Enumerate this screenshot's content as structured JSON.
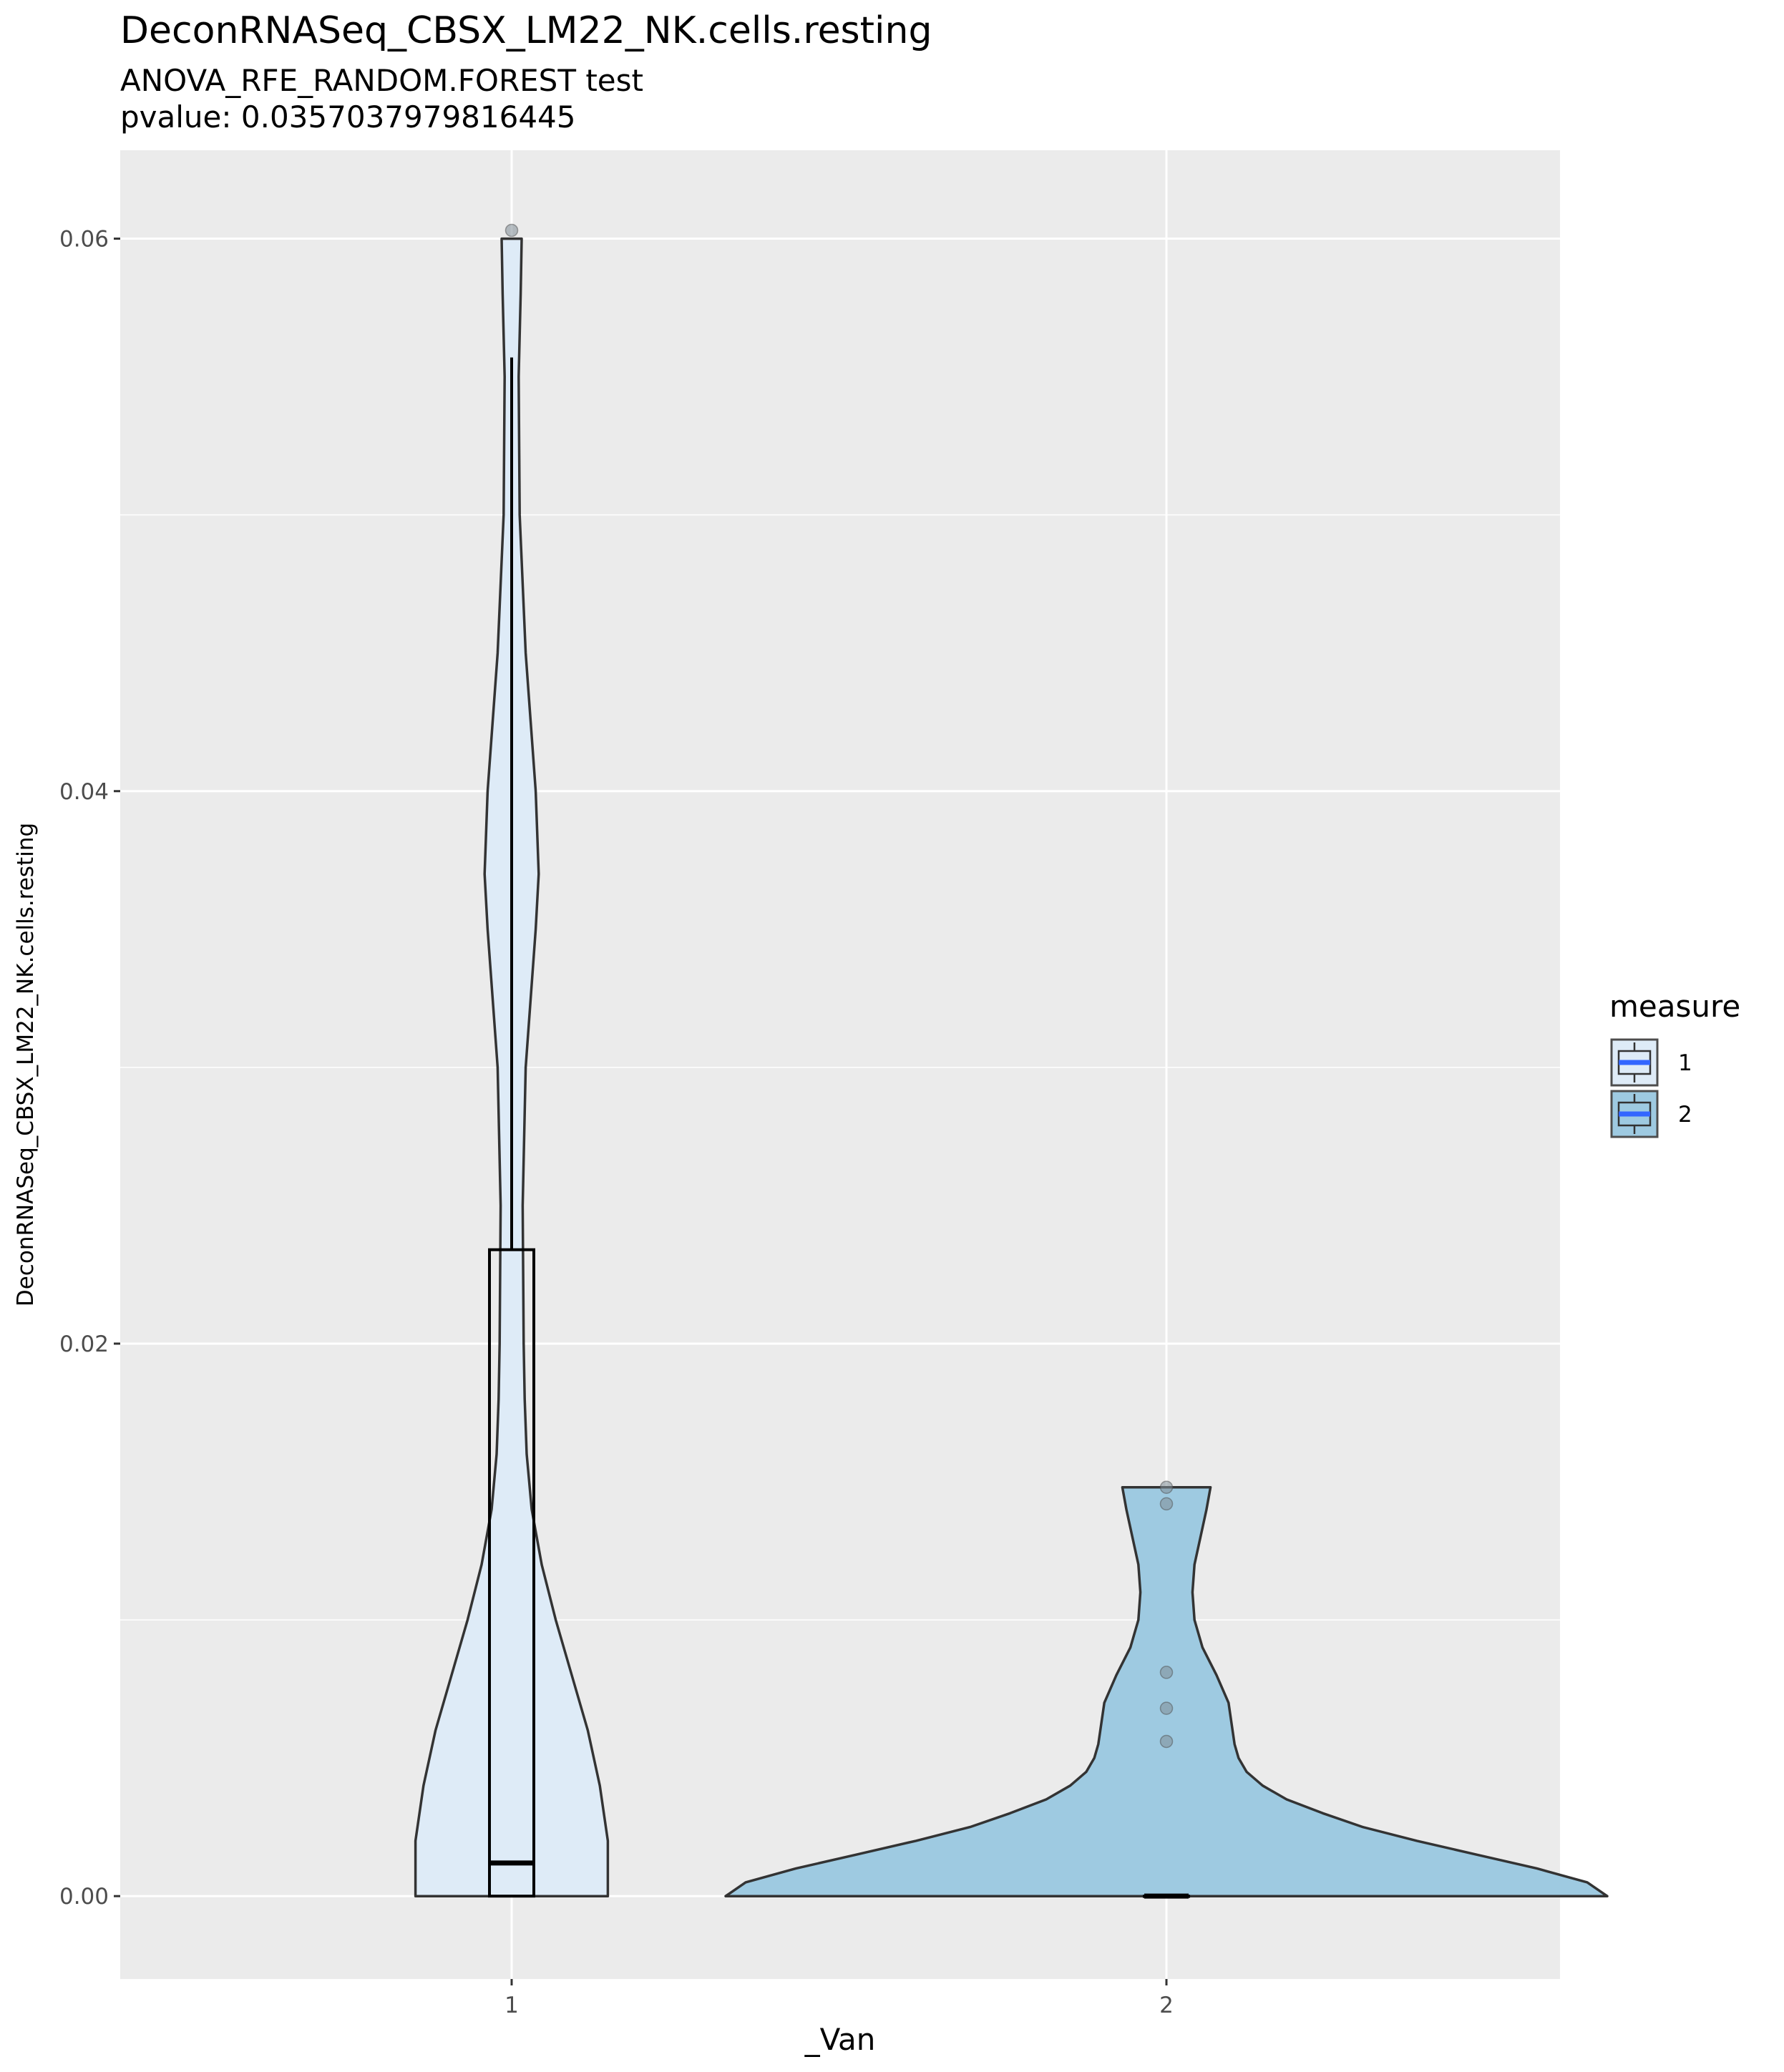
{
  "chart_data": {
    "type": "violin",
    "title": "DeconRNASeq_CBSX_LM22_NK.cells.resting",
    "subtitle_lines": [
      "ANOVA_RFE_RANDOM.FOREST test",
      "pvalue: 0.0357037979816445"
    ],
    "xlabel": "_Van",
    "ylabel": "DeconRNASeq_CBSX_LM22_NK.cells.resting",
    "categories": [
      "1",
      "2"
    ],
    "y_ticks": [
      0.0,
      0.02,
      0.04,
      0.06
    ],
    "y_tick_labels": [
      "0.00",
      "0.02",
      "0.04",
      "0.06"
    ],
    "ylim": [
      -0.003,
      0.0632
    ],
    "grid": true,
    "legend": {
      "title": "measure",
      "position": "right",
      "entries": [
        {
          "label": "1",
          "fill": "#deebf7"
        },
        {
          "label": "2",
          "fill": "#9ecae1"
        }
      ]
    },
    "series": [
      {
        "category": "1",
        "fill": "#deebf7",
        "violin_profile": [
          [
            0.0,
            0.48
          ],
          [
            0.002,
            0.48
          ],
          [
            0.004,
            0.44
          ],
          [
            0.006,
            0.38
          ],
          [
            0.008,
            0.3
          ],
          [
            0.01,
            0.22
          ],
          [
            0.012,
            0.15
          ],
          [
            0.014,
            0.1
          ],
          [
            0.016,
            0.075
          ],
          [
            0.018,
            0.065
          ],
          [
            0.02,
            0.06
          ],
          [
            0.025,
            0.055
          ],
          [
            0.03,
            0.07
          ],
          [
            0.035,
            0.12
          ],
          [
            0.037,
            0.135
          ],
          [
            0.04,
            0.12
          ],
          [
            0.045,
            0.07
          ],
          [
            0.05,
            0.04
          ],
          [
            0.055,
            0.035
          ],
          [
            0.058,
            0.045
          ],
          [
            0.06,
            0.05
          ]
        ],
        "box": {
          "q1": 0.0,
          "median": 0.0012,
          "q3": 0.0234,
          "whisker_low": 0.0,
          "whisker_high": 0.0557
        },
        "outliers": [
          0.0603
        ]
      },
      {
        "category": "2",
        "fill": "#9ecae1",
        "violin_profile": [
          [
            0.0,
            2.2
          ],
          [
            0.0005,
            2.1
          ],
          [
            0.001,
            1.85
          ],
          [
            0.0015,
            1.55
          ],
          [
            0.002,
            1.25
          ],
          [
            0.0025,
            0.98
          ],
          [
            0.003,
            0.78
          ],
          [
            0.0035,
            0.6
          ],
          [
            0.004,
            0.48
          ],
          [
            0.0045,
            0.4
          ],
          [
            0.005,
            0.36
          ],
          [
            0.0055,
            0.34
          ],
          [
            0.006,
            0.33
          ],
          [
            0.007,
            0.31
          ],
          [
            0.008,
            0.25
          ],
          [
            0.009,
            0.18
          ],
          [
            0.01,
            0.14
          ],
          [
            0.011,
            0.13
          ],
          [
            0.012,
            0.14
          ],
          [
            0.013,
            0.17
          ],
          [
            0.014,
            0.2
          ],
          [
            0.0148,
            0.22
          ]
        ],
        "box": {
          "q1": 0.0,
          "median": 0.0,
          "q3": 0.0,
          "whisker_low": 0.0,
          "whisker_high": 0.0
        },
        "outliers": [
          0.0148,
          0.0142,
          0.0081,
          0.0068,
          0.0056
        ]
      }
    ]
  }
}
